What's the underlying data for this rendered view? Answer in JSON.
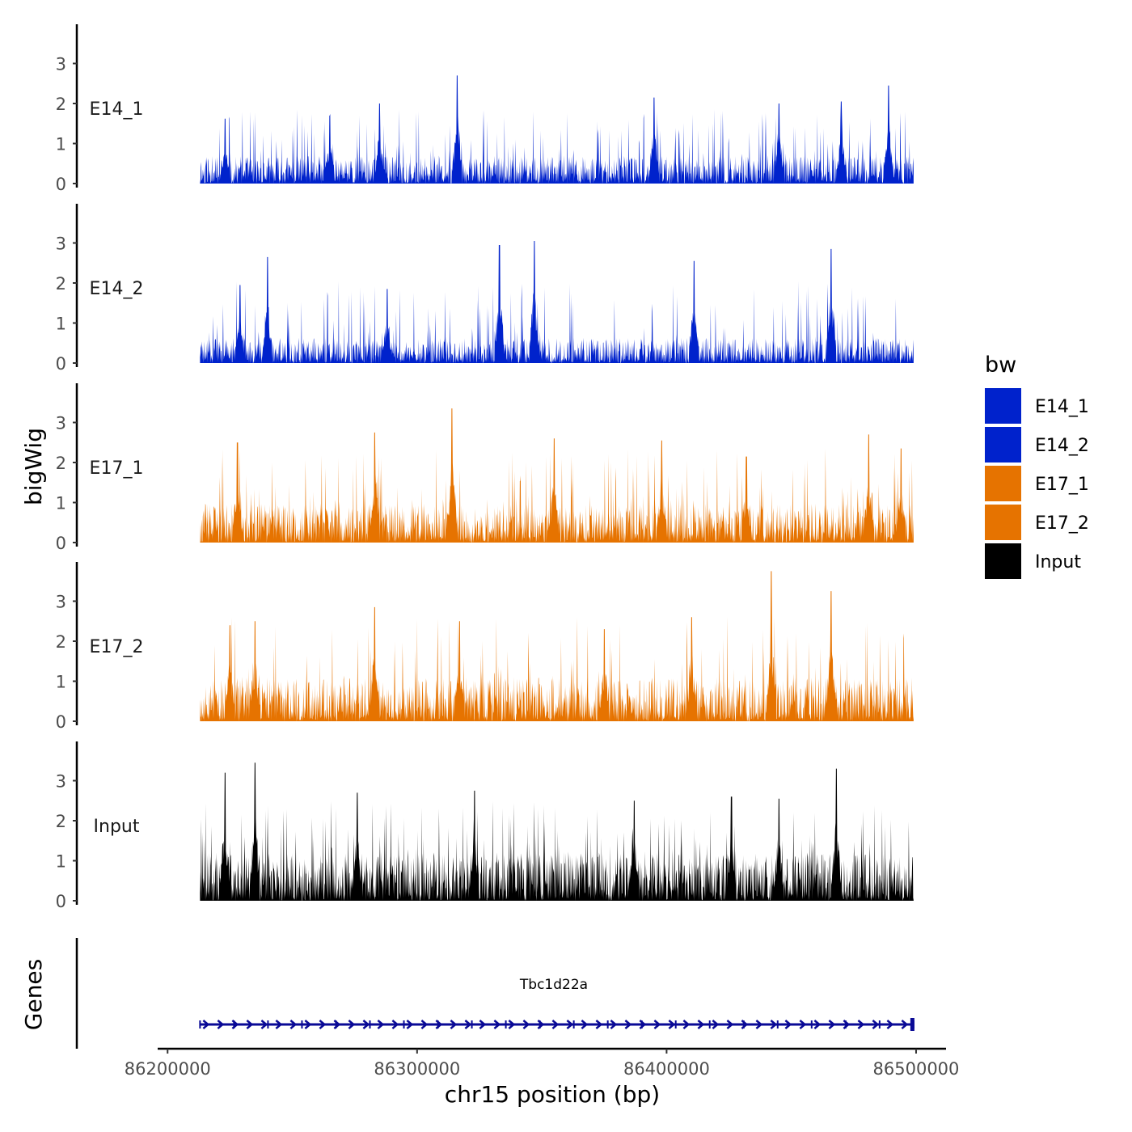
{
  "chart_data": {
    "type": "area",
    "title": "",
    "xlabel": "chr15 position (bp)",
    "ylabel": "bigWig",
    "genes_label": "Genes",
    "xlim": [
      86197000,
      86512000
    ],
    "ylim": [
      0,
      3.9
    ],
    "x_ticks": [
      86200000,
      86300000,
      86400000,
      86500000
    ],
    "x_tick_labels": [
      "86200000",
      "86300000",
      "86400000",
      "86500000"
    ],
    "y_ticks": [
      0,
      1,
      2,
      3
    ],
    "y_tick_labels": [
      "0",
      "1",
      "2",
      "3"
    ],
    "data_range": [
      86213000,
      86499000
    ],
    "legend": {
      "title": "bw",
      "placement": "right",
      "entries": [
        {
          "label": "E14_1",
          "color": "#0022CC"
        },
        {
          "label": "E14_2",
          "color": "#0022CC"
        },
        {
          "label": "E17_1",
          "color": "#E67300"
        },
        {
          "label": "E17_2",
          "color": "#E67300"
        },
        {
          "label": "Input",
          "color": "#000000"
        }
      ]
    },
    "series": [
      {
        "name": "E14_1",
        "color": "#0022CC",
        "baseline": 0.6,
        "max": 2.7,
        "seed": 11,
        "peaks": [
          [
            86316000,
            2.7
          ],
          [
            86489000,
            2.45
          ],
          [
            86285000,
            2.0
          ],
          [
            86395000,
            2.15
          ],
          [
            86445000,
            2.0
          ],
          [
            86470000,
            2.05
          ],
          [
            86223000,
            1.62
          ],
          [
            86265000,
            1.7
          ]
        ]
      },
      {
        "name": "E14_2",
        "color": "#0022CC",
        "baseline": 0.55,
        "max": 3.05,
        "seed": 23,
        "peaks": [
          [
            86347000,
            3.05
          ],
          [
            86333000,
            2.95
          ],
          [
            86240000,
            2.65
          ],
          [
            86466000,
            2.85
          ],
          [
            86411000,
            2.55
          ],
          [
            86229000,
            1.95
          ],
          [
            86288000,
            1.85
          ]
        ]
      },
      {
        "name": "E17_1",
        "color": "#E67300",
        "baseline": 0.85,
        "max": 3.35,
        "seed": 37,
        "peaks": [
          [
            86314000,
            3.35
          ],
          [
            86228000,
            2.5
          ],
          [
            86283000,
            2.75
          ],
          [
            86355000,
            2.6
          ],
          [
            86398000,
            2.55
          ],
          [
            86432000,
            2.15
          ],
          [
            86481000,
            2.7
          ],
          [
            86494000,
            2.35
          ]
        ]
      },
      {
        "name": "E17_2",
        "color": "#E67300",
        "baseline": 0.95,
        "max": 3.75,
        "seed": 53,
        "peaks": [
          [
            86442000,
            3.75
          ],
          [
            86466000,
            3.25
          ],
          [
            86283000,
            2.85
          ],
          [
            86317000,
            2.5
          ],
          [
            86410000,
            2.6
          ],
          [
            86235000,
            2.5
          ],
          [
            86225000,
            2.4
          ],
          [
            86375000,
            2.3
          ]
        ]
      },
      {
        "name": "Input",
        "color": "#000000",
        "baseline": 1.05,
        "max": 3.45,
        "seed": 71,
        "peaks": [
          [
            86235000,
            3.45
          ],
          [
            86468000,
            3.3
          ],
          [
            86223000,
            3.2
          ],
          [
            86276000,
            2.7
          ],
          [
            86323000,
            2.75
          ],
          [
            86387000,
            2.5
          ],
          [
            86426000,
            2.6
          ],
          [
            86445000,
            2.55
          ]
        ]
      }
    ],
    "gene": {
      "name": "Tbc1d22a",
      "start": 86213000,
      "end": 86499000,
      "strand": "+",
      "color": "#0A0A96"
    }
  }
}
